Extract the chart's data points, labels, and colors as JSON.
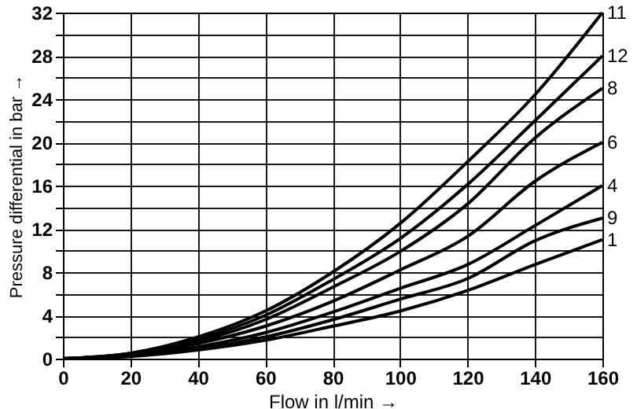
{
  "chart_data": {
    "type": "line",
    "xlabel": "Flow in l/min →",
    "ylabel": "Pressure differential in bar →",
    "x": [
      0,
      20,
      40,
      60,
      80,
      100,
      120,
      140,
      160
    ],
    "series": [
      {
        "name": "11",
        "color": "#000000",
        "values": [
          0,
          0.5,
          2,
          4.4,
          8,
          12.5,
          18.2,
          24.4,
          32
        ]
      },
      {
        "name": "12",
        "color": "#000000",
        "values": [
          0,
          0.5,
          1.8,
          4,
          7.3,
          11.1,
          16.1,
          22,
          28
        ]
      },
      {
        "name": "8",
        "color": "#000000",
        "values": [
          0,
          0.4,
          1.6,
          3.6,
          6.6,
          9.9,
          14.3,
          20.4,
          25
        ]
      },
      {
        "name": "6",
        "color": "#000000",
        "values": [
          0,
          0.4,
          1.4,
          3,
          5.3,
          8.2,
          11.3,
          16.4,
          20
        ]
      },
      {
        "name": "4",
        "color": "#000000",
        "values": [
          0,
          0.3,
          1.1,
          2.4,
          4.3,
          6.5,
          8.7,
          12.3,
          16
        ]
      },
      {
        "name": "9",
        "color": "#000000",
        "values": [
          0,
          0.3,
          0.9,
          2,
          3.6,
          5.5,
          7.4,
          10.9,
          13
        ]
      },
      {
        "name": "1",
        "color": "#000000",
        "values": [
          0,
          0.2,
          0.8,
          1.7,
          3,
          4.4,
          6.3,
          8.7,
          11
        ]
      }
    ],
    "xlim": [
      0,
      160
    ],
    "xticks": [
      0,
      20,
      40,
      60,
      80,
      100,
      120,
      140,
      160
    ],
    "ylim": [
      0,
      32
    ],
    "yticks": [
      0,
      {
        "value": 2,
        "label": null
      },
      4,
      {
        "value": 6,
        "label": null
      },
      8,
      {
        "value": 10,
        "label": null
      },
      12,
      {
        "value": 14,
        "label": null
      },
      16,
      {
        "value": 18,
        "label": null
      },
      20,
      {
        "value": 22,
        "label": null
      },
      24,
      {
        "value": 26,
        "label": null
      },
      28,
      {
        "value": 30,
        "label": null
      },
      32
    ],
    "grid": true,
    "marker": "none",
    "line_style": "solid"
  }
}
